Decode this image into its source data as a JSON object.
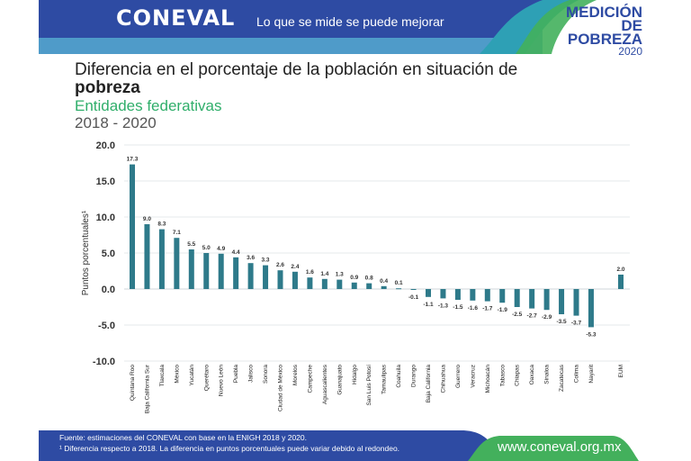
{
  "header": {
    "logo": "CONEVAL",
    "tagline": "Lo que se mide se puede mejorar",
    "badge_line1": "MEDICIÓN",
    "badge_line2": "DE POBREZA",
    "badge_year": "2020",
    "colors": {
      "dark_blue": "#2E4BA3",
      "light_blue": "#4F9BC9",
      "teal": "#2EA0B5",
      "green": "#43B05C"
    }
  },
  "footer": {
    "source": "Fuente: estimaciones del CONEVAL con base en la ENIGH 2018 y 2020.",
    "note": "¹ Diferencia respecto a 2018. La diferencia en puntos porcentuales puede variar debido al redondeo.",
    "url": "www.coneval.org.mx"
  },
  "chart_data": {
    "type": "bar",
    "title": "Diferencia en el porcentaje de la población en situación de pobreza",
    "title_line1": "Diferencia en el porcentaje de la población en situación de",
    "title_line2": "pobreza",
    "subtitle": "Entidades federativas",
    "period": "2018 - 2020",
    "xlabel": "",
    "ylabel": "Puntos porcentuales¹",
    "ylim": [
      -10,
      20
    ],
    "yticks": [
      "20.0",
      "15.0",
      "10.0",
      "5.0",
      "0.0",
      "-5.0",
      "-10.0"
    ],
    "ytick_values": [
      20,
      15,
      10,
      5,
      0,
      -5,
      -10
    ],
    "grid": true,
    "bar_color": "#2E7A8A",
    "categories": [
      "Quintana Roo",
      "Baja California Sur",
      "Tlaxcala",
      "México",
      "Yucatán",
      "Querétaro",
      "Nuevo León",
      "Puebla",
      "Jalisco",
      "Sonora",
      "Ciudad de México",
      "Morelos",
      "Campeche",
      "Aguascalientes",
      "Guanajuato",
      "Hidalgo",
      "San Luis Potosí",
      "Tamaulipas",
      "Coahuila",
      "Durango",
      "Baja California",
      "Chihuahua",
      "Guerrero",
      "Veracruz",
      "Michoacán",
      "Tabasco",
      "Chiapas",
      "Oaxaca",
      "Sinaloa",
      "Zacatecas",
      "Colima",
      "Nayarit",
      "EUM"
    ],
    "values": [
      17.3,
      9.0,
      8.3,
      7.1,
      5.5,
      5.0,
      4.9,
      4.4,
      3.6,
      3.3,
      2.6,
      2.4,
      1.6,
      1.4,
      1.3,
      0.9,
      0.8,
      0.4,
      0.1,
      -0.1,
      -1.1,
      -1.3,
      -1.5,
      -1.6,
      -1.7,
      -1.9,
      -2.5,
      -2.7,
      -2.9,
      -3.5,
      -3.7,
      -5.3,
      2.0
    ],
    "labels": [
      "17.3",
      "9.0",
      "8.3",
      "7.1",
      "5.5",
      "5.0",
      "4.9",
      "4.4",
      "3.6",
      "3.3",
      "2.6",
      "2.4",
      "1.6",
      "1.4",
      "1.3",
      "0.9",
      "0.8",
      "0.4",
      "0.1",
      "-0.1",
      "-1.1",
      "-1.3",
      "-1.5",
      "-1.6",
      "-1.7",
      "-1.9",
      "-2.5",
      "-2.7",
      "-2.9",
      "-3.5",
      "-3.7",
      "-5.3",
      "2.0"
    ]
  }
}
